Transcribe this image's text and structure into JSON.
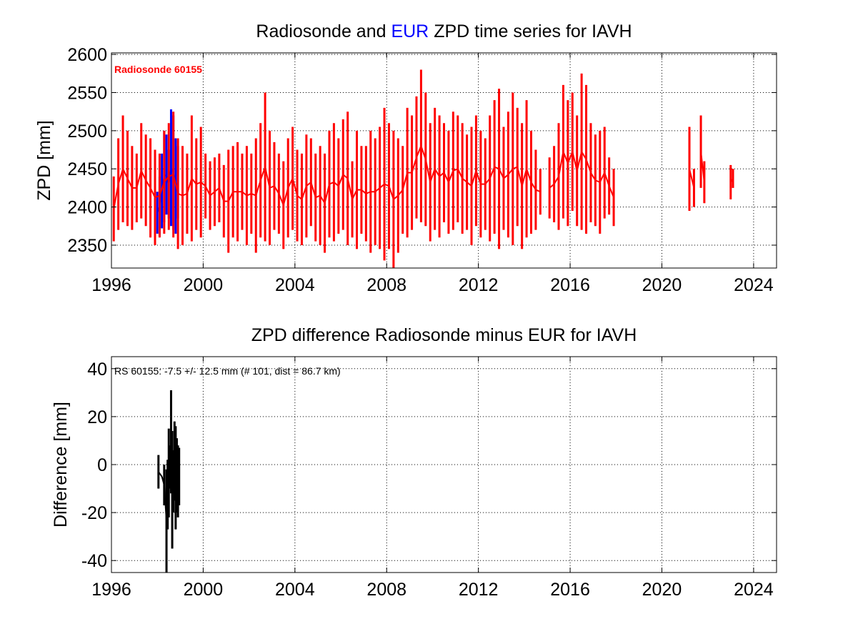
{
  "chart_data": [
    {
      "type": "line",
      "title_parts": [
        {
          "text": "Radiosonde and ",
          "color": "#000000"
        },
        {
          "text": "EUR",
          "color": "#0000ff"
        },
        {
          "text": " ZPD time series for IAVH",
          "color": "#000000"
        }
      ],
      "ylabel": "ZPD [mm]",
      "xlim": [
        1996,
        2025
      ],
      "ylim": [
        2320,
        2602
      ],
      "x_ticks": [
        1996,
        2000,
        2004,
        2008,
        2012,
        2016,
        2020,
        2024
      ],
      "y_ticks": [
        2350,
        2400,
        2450,
        2500,
        2550,
        2600
      ],
      "grid": true,
      "annotation": {
        "text": "Radiosonde 60155",
        "color": "#ff0000"
      },
      "series": [
        {
          "name": "EUR",
          "color": "#0000ff",
          "x": [
            1998.0,
            1998.1,
            1998.2,
            1998.3,
            1998.4,
            1998.5,
            1998.6,
            1998.7,
            1998.8,
            1998.9
          ],
          "min": [
            2365,
            2362,
            2372,
            2380,
            2390,
            2385,
            2375,
            2370,
            2365,
            2385
          ],
          "max": [
            2420,
            2440,
            2470,
            2500,
            2495,
            2475,
            2528,
            2520,
            2490,
            2480
          ]
        },
        {
          "name": "Radiosonde",
          "color": "#ff0000",
          "x": [
            1996.1,
            1996.3,
            1996.5,
            1996.7,
            1996.9,
            1997.1,
            1997.3,
            1997.5,
            1997.7,
            1997.9,
            1998.1,
            1998.3,
            1998.5,
            1998.7,
            1998.9,
            1999.1,
            1999.3,
            1999.5,
            1999.7,
            1999.9,
            2000.1,
            2000.3,
            2000.5,
            2000.7,
            2000.9,
            2001.1,
            2001.3,
            2001.5,
            2001.7,
            2001.9,
            2002.1,
            2002.3,
            2002.5,
            2002.7,
            2002.9,
            2003.1,
            2003.3,
            2003.5,
            2003.7,
            2003.9,
            2004.1,
            2004.3,
            2004.5,
            2004.7,
            2004.9,
            2005.1,
            2005.3,
            2005.5,
            2005.7,
            2005.9,
            2006.1,
            2006.3,
            2006.5,
            2006.7,
            2006.9,
            2007.1,
            2007.3,
            2007.5,
            2007.7,
            2007.9,
            2008.1,
            2008.3,
            2008.5,
            2008.7,
            2008.9,
            2009.1,
            2009.3,
            2009.5,
            2009.7,
            2009.9,
            2010.1,
            2010.3,
            2010.5,
            2010.7,
            2010.9,
            2011.1,
            2011.3,
            2011.5,
            2011.7,
            2011.9,
            2012.1,
            2012.3,
            2012.5,
            2012.7,
            2012.9,
            2013.1,
            2013.3,
            2013.5,
            2013.7,
            2013.9,
            2014.1,
            2014.3,
            2014.5,
            2014.7,
            2015.1,
            2015.3,
            2015.5,
            2015.7,
            2015.9,
            2016.1,
            2016.3,
            2016.5,
            2016.7,
            2016.9,
            2017.1,
            2017.3,
            2017.5,
            2017.7,
            2017.9,
            2021.2,
            2021.4,
            2021.7,
            2021.85,
            2023.0,
            2023.1
          ],
          "min": [
            2355,
            2370,
            2380,
            2375,
            2370,
            2380,
            2385,
            2375,
            2360,
            2350,
            2360,
            2365,
            2370,
            2360,
            2345,
            2350,
            2365,
            2355,
            2370,
            2360,
            2385,
            2370,
            2375,
            2380,
            2360,
            2340,
            2360,
            2355,
            2370,
            2350,
            2365,
            2340,
            2360,
            2355,
            2350,
            2370,
            2365,
            2345,
            2360,
            2370,
            2355,
            2350,
            2360,
            2375,
            2355,
            2350,
            2340,
            2360,
            2355,
            2365,
            2370,
            2350,
            2360,
            2345,
            2365,
            2355,
            2340,
            2350,
            2345,
            2330,
            2345,
            2320,
            2340,
            2365,
            2360,
            2370,
            2385,
            2380,
            2375,
            2355,
            2370,
            2360,
            2380,
            2365,
            2370,
            2380,
            2365,
            2370,
            2350,
            2375,
            2360,
            2370,
            2355,
            2365,
            2345,
            2370,
            2360,
            2350,
            2375,
            2345,
            2360,
            2365,
            2370,
            2390,
            2385,
            2380,
            2370,
            2385,
            2375,
            2395,
            2375,
            2370,
            2365,
            2380,
            2375,
            2365,
            2385,
            2390,
            2375,
            2395,
            2400,
            2425,
            2405,
            2410,
            2425
          ],
          "max": [
            2440,
            2490,
            2520,
            2500,
            2480,
            2470,
            2510,
            2495,
            2490,
            2475,
            2470,
            2500,
            2510,
            2525,
            2490,
            2480,
            2470,
            2520,
            2490,
            2505,
            2470,
            2460,
            2465,
            2470,
            2455,
            2475,
            2480,
            2485,
            2470,
            2480,
            2470,
            2490,
            2510,
            2550,
            2500,
            2485,
            2470,
            2460,
            2490,
            2505,
            2475,
            2470,
            2495,
            2490,
            2470,
            2480,
            2470,
            2500,
            2510,
            2490,
            2515,
            2525,
            2460,
            2500,
            2480,
            2480,
            2500,
            2490,
            2505,
            2530,
            2510,
            2500,
            2490,
            2480,
            2530,
            2520,
            2545,
            2580,
            2550,
            2510,
            2530,
            2520,
            2510,
            2500,
            2525,
            2520,
            2510,
            2495,
            2505,
            2520,
            2500,
            2490,
            2520,
            2540,
            2555,
            2505,
            2525,
            2550,
            2530,
            2510,
            2540,
            2500,
            2475,
            2450,
            2465,
            2480,
            2510,
            2560,
            2540,
            2550,
            2520,
            2575,
            2560,
            2510,
            2495,
            2500,
            2505,
            2465,
            2450,
            2505,
            2450,
            2520,
            2460,
            2455,
            2450
          ]
        }
      ]
    },
    {
      "type": "line",
      "title": "ZPD difference Radiosonde minus EUR for IAVH",
      "ylabel": "Difference [mm]",
      "xlim": [
        1996,
        2025
      ],
      "ylim": [
        -45,
        45
      ],
      "x_ticks": [
        1996,
        2000,
        2004,
        2008,
        2012,
        2016,
        2020,
        2024
      ],
      "y_ticks": [
        -40,
        -20,
        0,
        20,
        40
      ],
      "grid": true,
      "annotation": {
        "text": "RS 60155: -7.5 +/- 12.5 mm (# 101, dist =  86.7 km)",
        "color": "#000000"
      },
      "series": [
        {
          "color": "#000000",
          "x": [
            1998.05,
            1998.2,
            1998.3,
            1998.4,
            1998.45,
            1998.5,
            1998.55,
            1998.6,
            1998.65,
            1998.7,
            1998.75,
            1998.8,
            1998.85,
            1998.9,
            1998.95
          ],
          "min": [
            -10,
            -5,
            -17,
            -45,
            -27,
            -22,
            -10,
            -12,
            -35,
            -20,
            -15,
            -27,
            -20,
            -22,
            -17
          ],
          "max": [
            4,
            -5,
            0,
            -2,
            2,
            15,
            8,
            31,
            14,
            6,
            18,
            16,
            11,
            8,
            7
          ]
        }
      ]
    }
  ]
}
